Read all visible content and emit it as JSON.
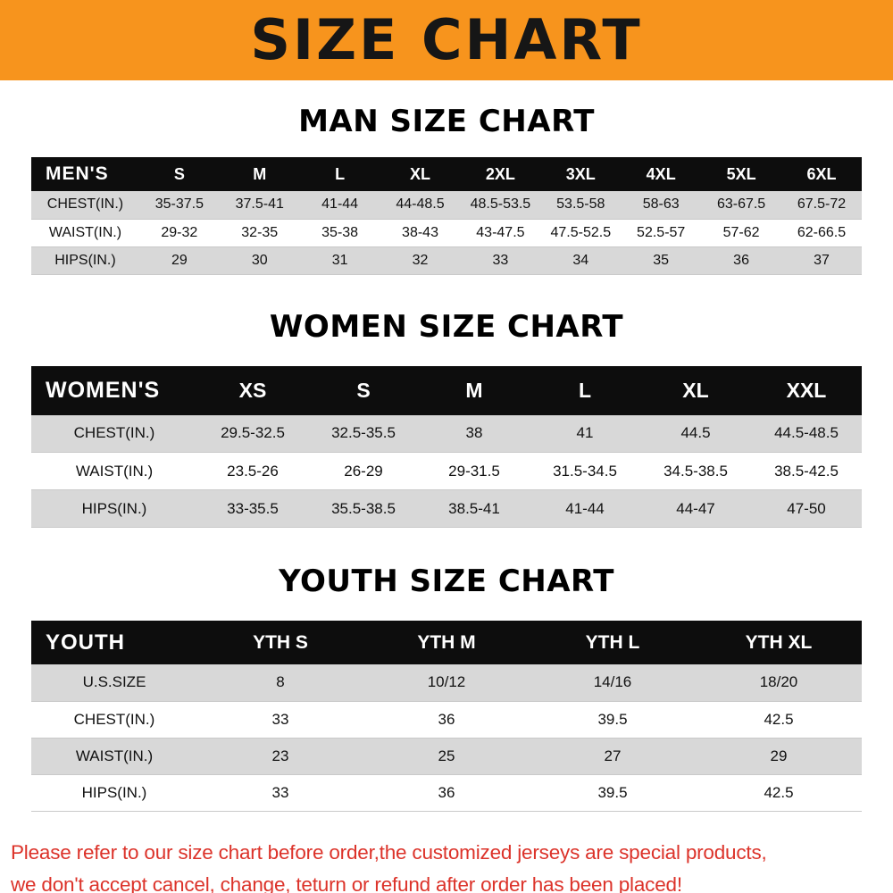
{
  "banner": {
    "title": "SIZE CHART"
  },
  "chart_data": [
    {
      "type": "table",
      "title": "MAN SIZE CHART",
      "corner_label": "MEN'S",
      "columns": [
        "S",
        "M",
        "L",
        "XL",
        "2XL",
        "3XL",
        "4XL",
        "5XL",
        "6XL"
      ],
      "rows": [
        {
          "label": "CHEST(IN.)",
          "values": [
            "35-37.5",
            "37.5-41",
            "41-44",
            "44-48.5",
            "48.5-53.5",
            "53.5-58",
            "58-63",
            "63-67.5",
            "67.5-72"
          ]
        },
        {
          "label": "WAIST(IN.)",
          "values": [
            "29-32",
            "32-35",
            "35-38",
            "38-43",
            "43-47.5",
            "47.5-52.5",
            "52.5-57",
            "57-62",
            "62-66.5"
          ]
        },
        {
          "label": "HIPS(IN.)",
          "values": [
            "29",
            "30",
            "31",
            "32",
            "33",
            "34",
            "35",
            "36",
            "37"
          ]
        }
      ]
    },
    {
      "type": "table",
      "title": "WOMEN SIZE CHART",
      "corner_label": "WOMEN'S",
      "columns": [
        "XS",
        "S",
        "M",
        "L",
        "XL",
        "XXL"
      ],
      "rows": [
        {
          "label": "CHEST(IN.)",
          "values": [
            "29.5-32.5",
            "32.5-35.5",
            "38",
            "41",
            "44.5",
            "44.5-48.5"
          ]
        },
        {
          "label": "WAIST(IN.)",
          "values": [
            "23.5-26",
            "26-29",
            "29-31.5",
            "31.5-34.5",
            "34.5-38.5",
            "38.5-42.5"
          ]
        },
        {
          "label": "HIPS(IN.)",
          "values": [
            "33-35.5",
            "35.5-38.5",
            "38.5-41",
            "41-44",
            "44-47",
            "47-50"
          ]
        }
      ]
    },
    {
      "type": "table",
      "title": "YOUTH SIZE CHART",
      "corner_label": "YOUTH",
      "columns": [
        "YTH S",
        "YTH M",
        "YTH L",
        "YTH XL"
      ],
      "rows": [
        {
          "label": "U.S.SIZE",
          "values": [
            "8",
            "10/12",
            "14/16",
            "18/20"
          ]
        },
        {
          "label": "CHEST(IN.)",
          "values": [
            "33",
            "36",
            "39.5",
            "42.5"
          ]
        },
        {
          "label": "WAIST(IN.)",
          "values": [
            "23",
            "25",
            "27",
            "29"
          ]
        },
        {
          "label": "HIPS(IN.)",
          "values": [
            "33",
            "36",
            "39.5",
            "42.5"
          ]
        }
      ]
    }
  ],
  "footer": {
    "line1": "Please refer to our size chart before order,the customized jerseys are special products,",
    "line2": "we don't accept cancel, change, teturn or refund after order has been placed!"
  },
  "theme": {
    "banner_bg": "#F7941D",
    "banner_text": "#161616",
    "table_header_bg": "#0D0D0D",
    "table_header_text": "#FFFFFF",
    "row_stripe": "#D8D8D8",
    "notice_text": "#DC332A"
  }
}
